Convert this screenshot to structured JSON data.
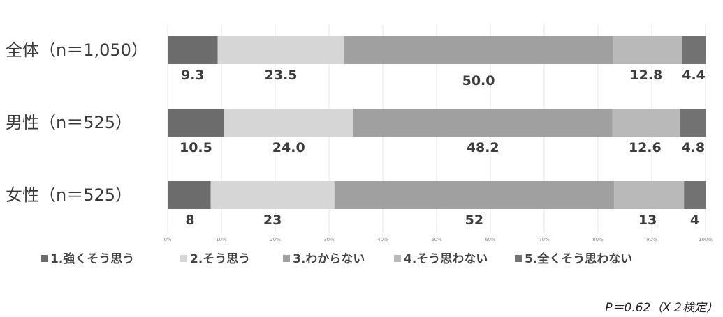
{
  "chart_data": {
    "type": "bar",
    "orientation": "horizontal",
    "stacked": true,
    "categories": [
      "全体（n＝1,050）",
      "男性（n＝525）",
      "女性（n＝525）"
    ],
    "series": [
      {
        "name": "1.強くそう思う",
        "values": [
          9.3,
          10.5,
          8
        ],
        "labels": [
          "9.3",
          "10.5",
          "8"
        ],
        "color": "#6c6c6c"
      },
      {
        "name": "2.そう思う",
        "values": [
          23.5,
          24.0,
          23
        ],
        "labels": [
          "23.5",
          "24.0",
          "23"
        ],
        "color": "#d6d6d6"
      },
      {
        "name": "3.わからない",
        "values": [
          50.0,
          48.2,
          52
        ],
        "labels": [
          "50.0",
          "48.2",
          "52"
        ],
        "color": "#a0a0a0"
      },
      {
        "name": "4.そう思わない",
        "values": [
          12.8,
          12.6,
          13
        ],
        "labels": [
          "12.8",
          "12.6",
          "13"
        ],
        "color": "#b9b9b9"
      },
      {
        "name": "5.全くそう思わない",
        "values": [
          4.4,
          4.8,
          4
        ],
        "labels": [
          "4.4",
          "4.8",
          "4"
        ],
        "color": "#727272"
      }
    ],
    "x_ticks": [
      "0%",
      "10%",
      "20%",
      "30%",
      "40%",
      "50%",
      "60%",
      "70%",
      "80%",
      "90%",
      "100%"
    ],
    "xlim": [
      0,
      100
    ],
    "grid": true,
    "legend_position": "bottom",
    "note": "P＝0.62（Χ２検定）"
  }
}
